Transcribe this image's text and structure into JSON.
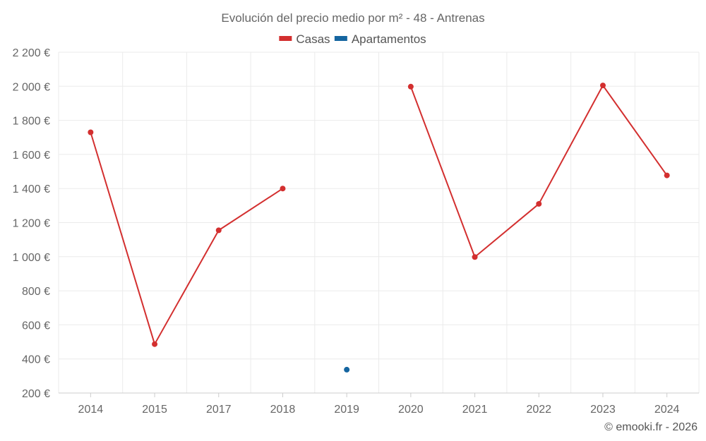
{
  "chart_data": {
    "type": "line",
    "title": "Evolución del precio medio por m² - 48 - Antrenas",
    "categories": [
      "2014",
      "2015",
      "2017",
      "2018",
      "2019",
      "2020",
      "2021",
      "2022",
      "2023",
      "2024"
    ],
    "ylim": [
      200,
      2200
    ],
    "yticks": [
      200,
      400,
      600,
      800,
      1000,
      1200,
      1400,
      1600,
      1800,
      2000,
      2200
    ],
    "ytick_labels": [
      "200 €",
      "400 €",
      "600 €",
      "800 €",
      "1 000 €",
      "1 200 €",
      "1 400 €",
      "1 600 €",
      "1 800 €",
      "2 000 €",
      "2 200 €"
    ],
    "grid": true,
    "legend_position": "top-center",
    "series": [
      {
        "name": "Casas",
        "color": "#d32f2f",
        "values": [
          1730,
          487,
          1155,
          1400,
          null,
          1998,
          998,
          1310,
          2005,
          1477
        ]
      },
      {
        "name": "Apartamentos",
        "color": "#1565a0",
        "values": [
          null,
          null,
          null,
          null,
          337,
          null,
          null,
          null,
          null,
          null
        ]
      }
    ],
    "credit": "© emooki.fr - 2026"
  }
}
